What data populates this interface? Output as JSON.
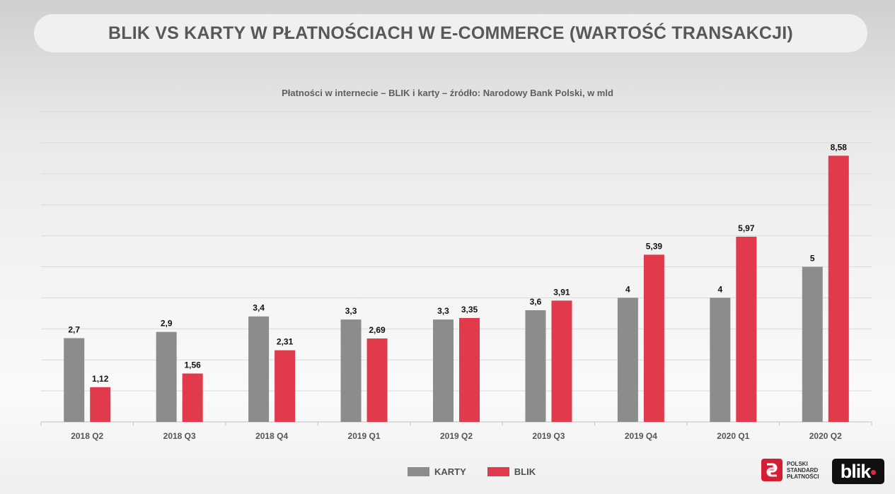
{
  "header": {
    "title": "BLIK VS KARTY W PŁATNOŚCIACH W E-COMMERCE (WARTOŚĆ TRANSAKCJI)"
  },
  "colors": {
    "karty": "#8c8c8c",
    "blik": "#e23a4d"
  },
  "chart_data": {
    "type": "bar",
    "title": "Płatności w internecie – BLIK i karty – źródło: Narodowy Bank Polski, w mld",
    "categories": [
      "2018 Q2",
      "2018 Q3",
      "2018 Q4",
      "2019 Q1",
      "2019 Q2",
      "2019 Q3",
      "2019 Q4",
      "2020 Q1",
      "2020 Q2"
    ],
    "series": [
      {
        "name": "KARTY",
        "values": [
          2.7,
          2.9,
          3.4,
          3.3,
          3.3,
          3.6,
          4,
          4,
          5
        ],
        "labels": [
          "2,7",
          "2,9",
          "3,4",
          "3,3",
          "3,3",
          "3,6",
          "4",
          "4",
          "5"
        ]
      },
      {
        "name": "BLIK",
        "values": [
          1.12,
          1.56,
          2.31,
          2.69,
          3.35,
          3.91,
          5.39,
          5.97,
          8.58
        ],
        "labels": [
          "1,12",
          "1,56",
          "2,31",
          "2,69",
          "3,35",
          "3,91",
          "5,39",
          "5,97",
          "8,58"
        ]
      }
    ],
    "ylim": [
      0,
      10
    ],
    "grid": true,
    "legend": "bottom-center",
    "xlabel": "",
    "ylabel": ""
  },
  "logos": {
    "psp_text": "POLSKI STANDARD PŁATNOŚCI",
    "blik_text": "blik"
  }
}
